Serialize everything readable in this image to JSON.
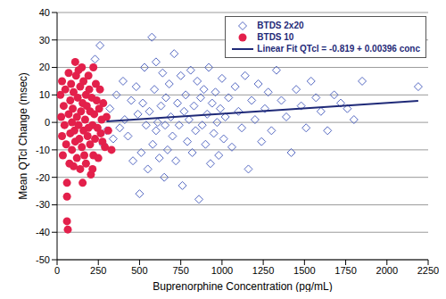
{
  "chart_data": {
    "type": "scatter",
    "x_label": "Buprenorphine Concentration (pg/mL)",
    "y_label": "Mean QTcl Change (msec)",
    "xlim": [
      0,
      2250
    ],
    "xticks": [
      0,
      250,
      500,
      750,
      1000,
      1250,
      1500,
      1750,
      2000,
      2250
    ],
    "ylim": [
      -50,
      40
    ],
    "yticks": [
      -50,
      -40,
      -30,
      -20,
      -10,
      0,
      10,
      20,
      30,
      40
    ],
    "grid": true,
    "legend": "upper right",
    "series": [
      {
        "name": "BTDS 2x20",
        "type": "scatter",
        "marker": "diamond",
        "color": "#5468c2",
        "x": [
          230,
          260,
          280,
          300,
          320,
          340,
          360,
          380,
          400,
          410,
          430,
          450,
          460,
          480,
          490,
          500,
          510,
          520,
          530,
          540,
          550,
          560,
          575,
          580,
          590,
          600,
          600,
          610,
          620,
          630,
          640,
          650,
          655,
          660,
          670,
          680,
          690,
          700,
          710,
          720,
          730,
          740,
          750,
          760,
          770,
          780,
          790,
          800,
          810,
          820,
          830,
          840,
          850,
          860,
          870,
          880,
          890,
          900,
          910,
          920,
          930,
          940,
          950,
          960,
          970,
          980,
          990,
          1000,
          1010,
          1020,
          1040,
          1060,
          1080,
          1100,
          1120,
          1140,
          1160,
          1180,
          1200,
          1220,
          1240,
          1260,
          1280,
          1300,
          1330,
          1360,
          1390,
          1420,
          1450,
          1480,
          1510,
          1540,
          1570,
          1600,
          1640,
          1680,
          1720,
          1760,
          1800,
          1850,
          2190
        ],
        "values": [
          23,
          28,
          -8,
          -3,
          5,
          -6,
          10,
          -2,
          15,
          1,
          -5,
          8,
          -14,
          13,
          3,
          -26,
          -11,
          7,
          20,
          -1,
          -17,
          4,
          31,
          -8,
          12,
          22,
          -3,
          0,
          -13,
          6,
          18,
          -20,
          -1,
          9,
          -10,
          14,
          2,
          -5,
          25,
          -14,
          7,
          -1,
          17,
          -23,
          4,
          10,
          -7,
          1,
          19,
          -11,
          6,
          -3,
          15,
          -28,
          9,
          -1,
          12,
          -8,
          3,
          20,
          -15,
          7,
          -4,
          11,
          0,
          -12,
          5,
          16,
          -6,
          2,
          9,
          -9,
          13,
          4,
          -2,
          17,
          -17,
          8,
          1,
          14,
          -7,
          5,
          11,
          -3,
          19,
          8,
          2,
          -11,
          12,
          6,
          -2,
          15,
          9,
          4,
          -3,
          10,
          7,
          5,
          1,
          15,
          13
        ]
      },
      {
        "name": "BTDS 10",
        "type": "scatter",
        "marker": "circle",
        "color": "#e3204b",
        "x": [
          20,
          25,
          30,
          35,
          40,
          45,
          50,
          55,
          60,
          60,
          65,
          70,
          75,
          80,
          80,
          85,
          90,
          90,
          95,
          100,
          100,
          105,
          110,
          115,
          120,
          120,
          125,
          130,
          130,
          135,
          140,
          140,
          145,
          150,
          150,
          155,
          160,
          160,
          165,
          170,
          175,
          175,
          180,
          185,
          190,
          190,
          195,
          200,
          200,
          205,
          210,
          215,
          220,
          220,
          225,
          230,
          235,
          240,
          245,
          250,
          255,
          260,
          265,
          270,
          275,
          280,
          290,
          300,
          310,
          330,
          215,
          110,
          155,
          60,
          30,
          70
        ],
        "values": [
          10,
          2,
          -5,
          -12,
          6,
          -1,
          12,
          -8,
          -22,
          -36,
          -39,
          3,
          -15,
          8,
          -4,
          14,
          0,
          -10,
          5,
          -16,
          11,
          -3,
          -7,
          17,
          2,
          -13,
          9,
          -1,
          19,
          -6,
          13,
          -17,
          4,
          -9,
          20,
          7,
          -3,
          15,
          -12,
          1,
          -15,
          10,
          6,
          -5,
          17,
          -2,
          12,
          -8,
          4,
          -19,
          9,
          -1,
          20,
          -12,
          3,
          -6,
          14,
          8,
          -2,
          -13,
          5,
          12,
          -4,
          1,
          -7,
          7,
          -9,
          2,
          -3,
          -10,
          -17,
          22,
          -22,
          -27,
          15,
          18
        ]
      },
      {
        "name": "Linear Fit QTcl = -0.819 + 0.00396 conc",
        "type": "line",
        "line_style": "solid",
        "color": "#1f2a78",
        "x": [
          300,
          2190
        ],
        "values": [
          0.37,
          7.85
        ]
      }
    ]
  }
}
